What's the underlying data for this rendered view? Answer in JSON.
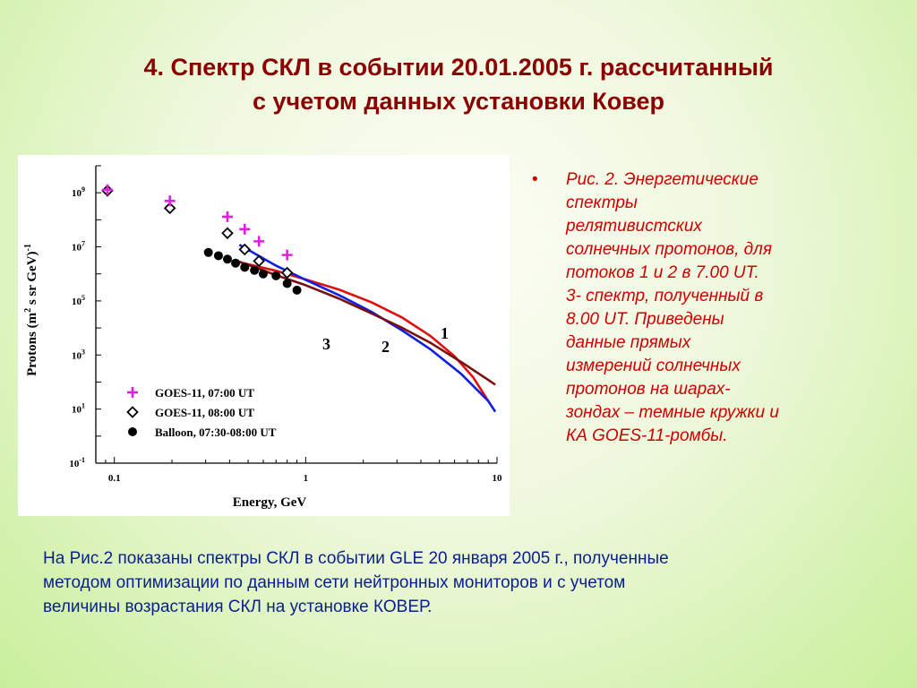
{
  "title": {
    "line1": "4. Спектр СКЛ в событии 20.01.2005 г. рассчитанный",
    "line2": "с учетом данных установки Ковер"
  },
  "caption": {
    "bullet": "•",
    "lines": [
      "Рис. 2. Энергетические",
      "спектры",
      "релятивистских",
      "солнечных протонов, для",
      "потоков 1 и 2 в 7.00 UT.",
      "3- спектр, полученный в",
      "8.00 UT. Приведены",
      "данные прямых",
      "измерений солнечных",
      "протонов на шарах-",
      "зондах – темные кружки и",
      "КА GOES-11-ромбы."
    ]
  },
  "note": {
    "lines": [
      "На Рис.2 показаны спектры СКЛ в событии GLE 20 января 2005 г., полученные",
      "методом оптимизации по данным сети нейтронных мониторов и с учетом",
      "величины возрастания СКЛ на установке КОВЕР."
    ]
  },
  "chart_data": {
    "type": "scatter",
    "xscale": "log",
    "yscale": "log",
    "xlim": [
      0.08,
      10
    ],
    "ylim": [
      0.1,
      10000000000
    ],
    "xlabel": "Energy, GeV",
    "ylabel_parts": [
      "Protons (m",
      "2",
      " s sr GeV)",
      "-1"
    ],
    "x_ticks": [
      {
        "value": 0.1,
        "label": "0.1"
      },
      {
        "value": 1,
        "label": "1"
      },
      {
        "value": 10,
        "label": "10"
      }
    ],
    "y_ticks": [
      {
        "value": 0.1,
        "base": "10",
        "exp": "-1"
      },
      {
        "value": 10,
        "base": "10",
        "exp": "1"
      },
      {
        "value": 1000,
        "base": "10",
        "exp": "3"
      },
      {
        "value": 100000,
        "base": "10",
        "exp": "5"
      },
      {
        "value": 10000000,
        "base": "10",
        "exp": "7"
      },
      {
        "value": 1000000000,
        "base": "10",
        "exp": "9"
      }
    ],
    "grid": false,
    "legend_position": "bottom-left",
    "series": [
      {
        "name": "GOES-11, 07:00 UT",
        "marker": "plus",
        "color": "#e020e0",
        "points": [
          [
            0.092,
            1300000000
          ],
          [
            0.195,
            500000000
          ],
          [
            0.39,
            130000000
          ],
          [
            0.48,
            45000000
          ],
          [
            0.57,
            16000000
          ],
          [
            0.8,
            5000000
          ]
        ]
      },
      {
        "name": "GOES-11, 08:00 UT",
        "marker": "diamond",
        "color": "#000000",
        "points": [
          [
            0.092,
            1200000000
          ],
          [
            0.195,
            270000000
          ],
          [
            0.39,
            32000000
          ],
          [
            0.48,
            8000000
          ],
          [
            0.57,
            3000000
          ],
          [
            0.8,
            1100000
          ]
        ]
      },
      {
        "name": "Balloon, 07:30-08:00 UT",
        "marker": "circle",
        "color": "#000000",
        "points": [
          [
            0.31,
            6200000
          ],
          [
            0.35,
            4700000
          ],
          [
            0.39,
            3500000
          ],
          [
            0.43,
            2500000
          ],
          [
            0.48,
            1750000
          ],
          [
            0.54,
            1350000
          ],
          [
            0.6,
            1000000
          ],
          [
            0.7,
            850000
          ],
          [
            0.8,
            440000
          ],
          [
            0.9,
            250000
          ]
        ]
      }
    ],
    "curves": [
      {
        "label": "1",
        "color": "#e01010",
        "points": [
          [
            0.45,
            2700000
          ],
          [
            0.7,
            1300000
          ],
          [
            1.0,
            620000
          ],
          [
            1.5,
            260000
          ],
          [
            2.2,
            90000
          ],
          [
            3.2,
            24000
          ],
          [
            4.5,
            5000
          ],
          [
            6.0,
            900
          ],
          [
            7.5,
            150
          ],
          [
            9.0,
            20
          ]
        ]
      },
      {
        "label": "2",
        "color": "#1020e0",
        "points": [
          [
            0.45,
            12000000
          ],
          [
            0.7,
            2000000
          ],
          [
            1.0,
            600000
          ],
          [
            1.5,
            160000
          ],
          [
            2.2,
            40000
          ],
          [
            3.2,
            8000
          ],
          [
            4.5,
            1600
          ],
          [
            6.5,
            200
          ],
          [
            9.0,
            20
          ],
          [
            9.8,
            8
          ]
        ]
      },
      {
        "label": "3",
        "color": "#7a1010",
        "points": [
          [
            0.45,
            2800000
          ],
          [
            0.7,
            900000
          ],
          [
            1.0,
            380000
          ],
          [
            1.5,
            120000
          ],
          [
            2.2,
            35000
          ],
          [
            3.2,
            10000
          ],
          [
            4.5,
            2800
          ],
          [
            6.5,
            550
          ],
          [
            9.0,
            120
          ],
          [
            9.8,
            80
          ]
        ]
      }
    ]
  }
}
